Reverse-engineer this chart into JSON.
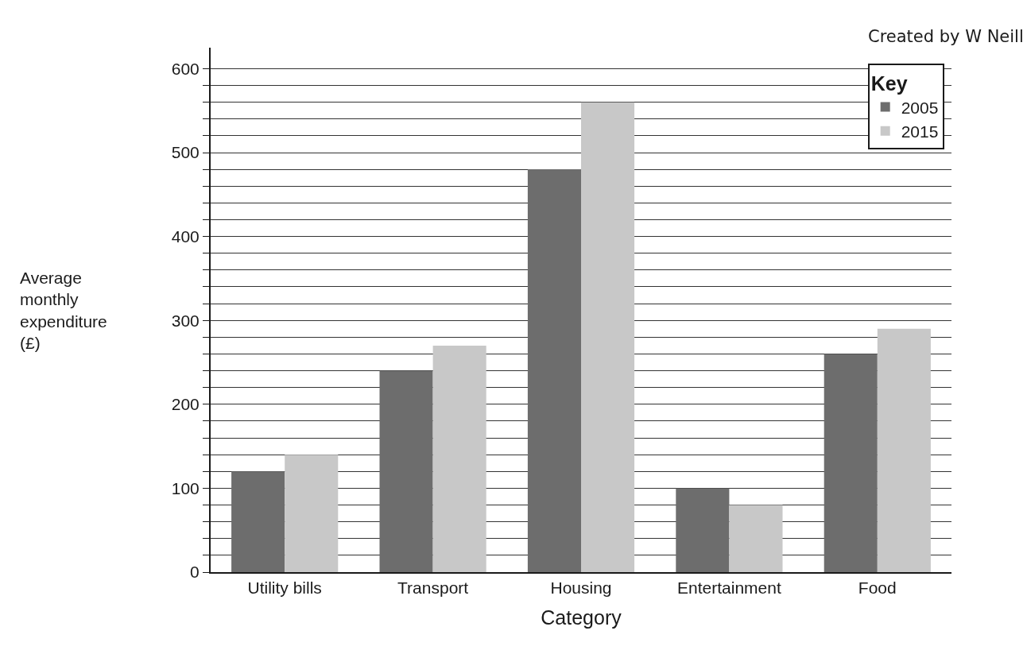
{
  "chart_data": {
    "type": "bar",
    "categories": [
      "Utility bills",
      "Transport",
      "Housing",
      "Entertainment",
      "Food"
    ],
    "series": [
      {
        "name": "2005",
        "color": "#6d6d6d",
        "values": [
          120,
          240,
          480,
          100,
          260
        ]
      },
      {
        "name": "2015",
        "color": "#c8c8c8",
        "values": [
          140,
          270,
          560,
          80,
          290
        ]
      }
    ],
    "xlabel": "Category",
    "ylabel": "Average\nmonthly\nexpenditure\n(£)",
    "legend_title": "Key",
    "legend": "top right",
    "ylim": [
      0,
      625
    ],
    "yticks": [
      0,
      {
        "value": 20,
        "label": null
      },
      {
        "value": 40,
        "label": null
      },
      {
        "value": 60,
        "label": null
      },
      {
        "value": 80,
        "label": null
      },
      100,
      {
        "value": 120,
        "label": null
      },
      {
        "value": 140,
        "label": null
      },
      {
        "value": 160,
        "label": null
      },
      {
        "value": 180,
        "label": null
      },
      200,
      {
        "value": 220,
        "label": null
      },
      {
        "value": 240,
        "label": null
      },
      {
        "value": 260,
        "label": null
      },
      {
        "value": 280,
        "label": null
      },
      300,
      {
        "value": 320,
        "label": null
      },
      {
        "value": 340,
        "label": null
      },
      {
        "value": 360,
        "label": null
      },
      {
        "value": 380,
        "label": null
      },
      400,
      {
        "value": 420,
        "label": null
      },
      {
        "value": 440,
        "label": null
      },
      {
        "value": 460,
        "label": null
      },
      {
        "value": 480,
        "label": null
      },
      500,
      {
        "value": 520,
        "label": null
      },
      {
        "value": 540,
        "label": null
      },
      {
        "value": 560,
        "label": null
      },
      {
        "value": 580,
        "label": null
      },
      600
    ],
    "grid": "y",
    "annotations": [
      "Created by W Neill"
    ]
  }
}
